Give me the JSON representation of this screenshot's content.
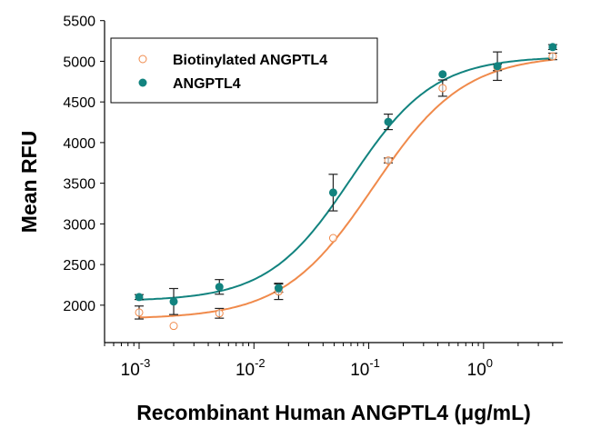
{
  "chart_data": {
    "type": "scatter",
    "xscale": "log",
    "xlabel": "Recombinant Human ANGPTL4 (μg/mL)",
    "ylabel": "Mean RFU",
    "xlim": [
      0.0005,
      4.9
    ],
    "ylim": [
      1540,
      5500
    ],
    "y_ticks": [
      2000,
      2500,
      3000,
      3500,
      4000,
      4500,
      5000,
      5500
    ],
    "x_ticks": [
      {
        "value": 0.001,
        "base": "10",
        "exp": "-3"
      },
      {
        "value": 0.01,
        "base": "10",
        "exp": "-2"
      },
      {
        "value": 0.1,
        "base": "10",
        "exp": "-1"
      },
      {
        "value": 1,
        "base": "10",
        "exp": "0"
      }
    ],
    "grid": false,
    "legend_position": "top-left",
    "series": [
      {
        "name": "Biotinylated ANGPTL4",
        "color": "#f08a4b",
        "marker": "open-circle",
        "x": [
          0.001,
          0.002,
          0.005,
          0.0164,
          0.049,
          0.148,
          0.44,
          1.32,
          4.0
        ],
        "y": [
          1910,
          1745,
          1900,
          2170,
          2825,
          3780,
          4670,
          4925,
          5060
        ],
        "error": [
          80,
          0,
          60,
          100,
          0,
          30,
          100,
          40,
          40
        ],
        "fit": {
          "bottom": 1830,
          "top": 5080,
          "ec50": 0.11,
          "hill": 1.1
        }
      },
      {
        "name": "ANGPTL4",
        "color": "#12837f",
        "marker": "filled-circle",
        "x": [
          0.001,
          0.002,
          0.005,
          0.0164,
          0.049,
          0.148,
          0.44,
          1.32,
          4.0
        ],
        "y": [
          2100,
          2045,
          2225,
          2210,
          3385,
          4255,
          4840,
          4940,
          5175
        ],
        "error": [
          30,
          160,
          90,
          50,
          225,
          95,
          0,
          175,
          30
        ],
        "fit": {
          "bottom": 2050,
          "top": 5060,
          "ec50": 0.07,
          "hill": 1.2
        }
      }
    ]
  }
}
